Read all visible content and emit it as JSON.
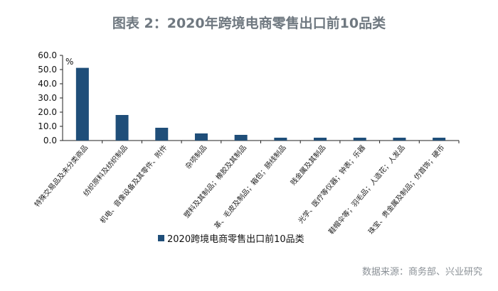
{
  "title": "图表 2：2020年跨境电商零售出口前10品类",
  "unit": "%",
  "source": "数据来源：商务部、兴业研究",
  "legend": "2020跨境电商零售出口前10品类",
  "colors": {
    "bar": "#1f4e79",
    "axis": "#222222",
    "title": "#6f7880"
  },
  "chart_data": {
    "type": "bar",
    "title": "图表 2：2020年跨境电商零售出口前10品类",
    "ylabel": "%",
    "ylim": [
      0,
      60
    ],
    "yticks": [
      "60.0",
      "50.0",
      "40.0",
      "30.0",
      "20.0",
      "10.0",
      "0.0"
    ],
    "grid": false,
    "legend_position": "bottom",
    "categories": [
      "特殊交易品及未分类商品",
      "纺织原料及纺织制品",
      "机电、音像设备及其零件、附件",
      "杂项制品",
      "塑料及其制品；橡胶及其制品",
      "革、毛皮及制品；箱包；肠线制品",
      "贱金属及其制品",
      "光学、医疗等仪器；钟表；乐器",
      "鞋帽伞等；羽毛品；人造花；人发品",
      "珠宝、贵金属及制品；仿首饰；硬币"
    ],
    "series": [
      {
        "name": "2020跨境电商零售出口前10品类",
        "values": [
          51.2,
          18.0,
          9.0,
          5.0,
          4.0,
          2.0,
          2.0,
          2.0,
          2.0,
          2.0
        ]
      }
    ]
  }
}
